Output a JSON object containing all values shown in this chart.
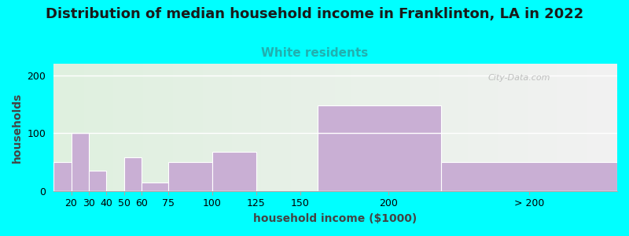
{
  "title": "Distribution of median household income in Franklinton, LA in 2022",
  "subtitle": "White residents",
  "xlabel": "household income ($1000)",
  "ylabel": "households",
  "background_color": "#00FFFF",
  "plot_bg_gradient_left": "#dff0df",
  "plot_bg_gradient_right": "#f2f2f2",
  "bar_color": "#c9afd4",
  "categories": [
    "20",
    "30",
    "40",
    "50",
    "60",
    "75",
    "100",
    "125",
    "150",
    "200",
    "> 200"
  ],
  "values": [
    50,
    100,
    35,
    0,
    58,
    14,
    50,
    68,
    0,
    148,
    50
  ],
  "bar_lefts": [
    10,
    20,
    30,
    40,
    50,
    60,
    75,
    100,
    125,
    160,
    230
  ],
  "bar_rights": [
    20,
    30,
    40,
    50,
    60,
    75,
    100,
    125,
    150,
    230,
    330
  ],
  "xtick_positions": [
    20,
    30,
    40,
    50,
    60,
    75,
    100,
    125,
    150,
    200,
    280
  ],
  "xtick_labels": [
    "20",
    "30",
    "40",
    "50",
    "60",
    "75",
    "100",
    "125",
    "150",
    "200",
    "> 200"
  ],
  "xlim": [
    10,
    330
  ],
  "ylim": [
    0,
    220
  ],
  "yticks": [
    0,
    100,
    200
  ],
  "title_fontsize": 13,
  "subtitle_fontsize": 11,
  "subtitle_color": "#20b0b0",
  "axis_label_fontsize": 10,
  "tick_fontsize": 9,
  "watermark": "City-Data.com"
}
